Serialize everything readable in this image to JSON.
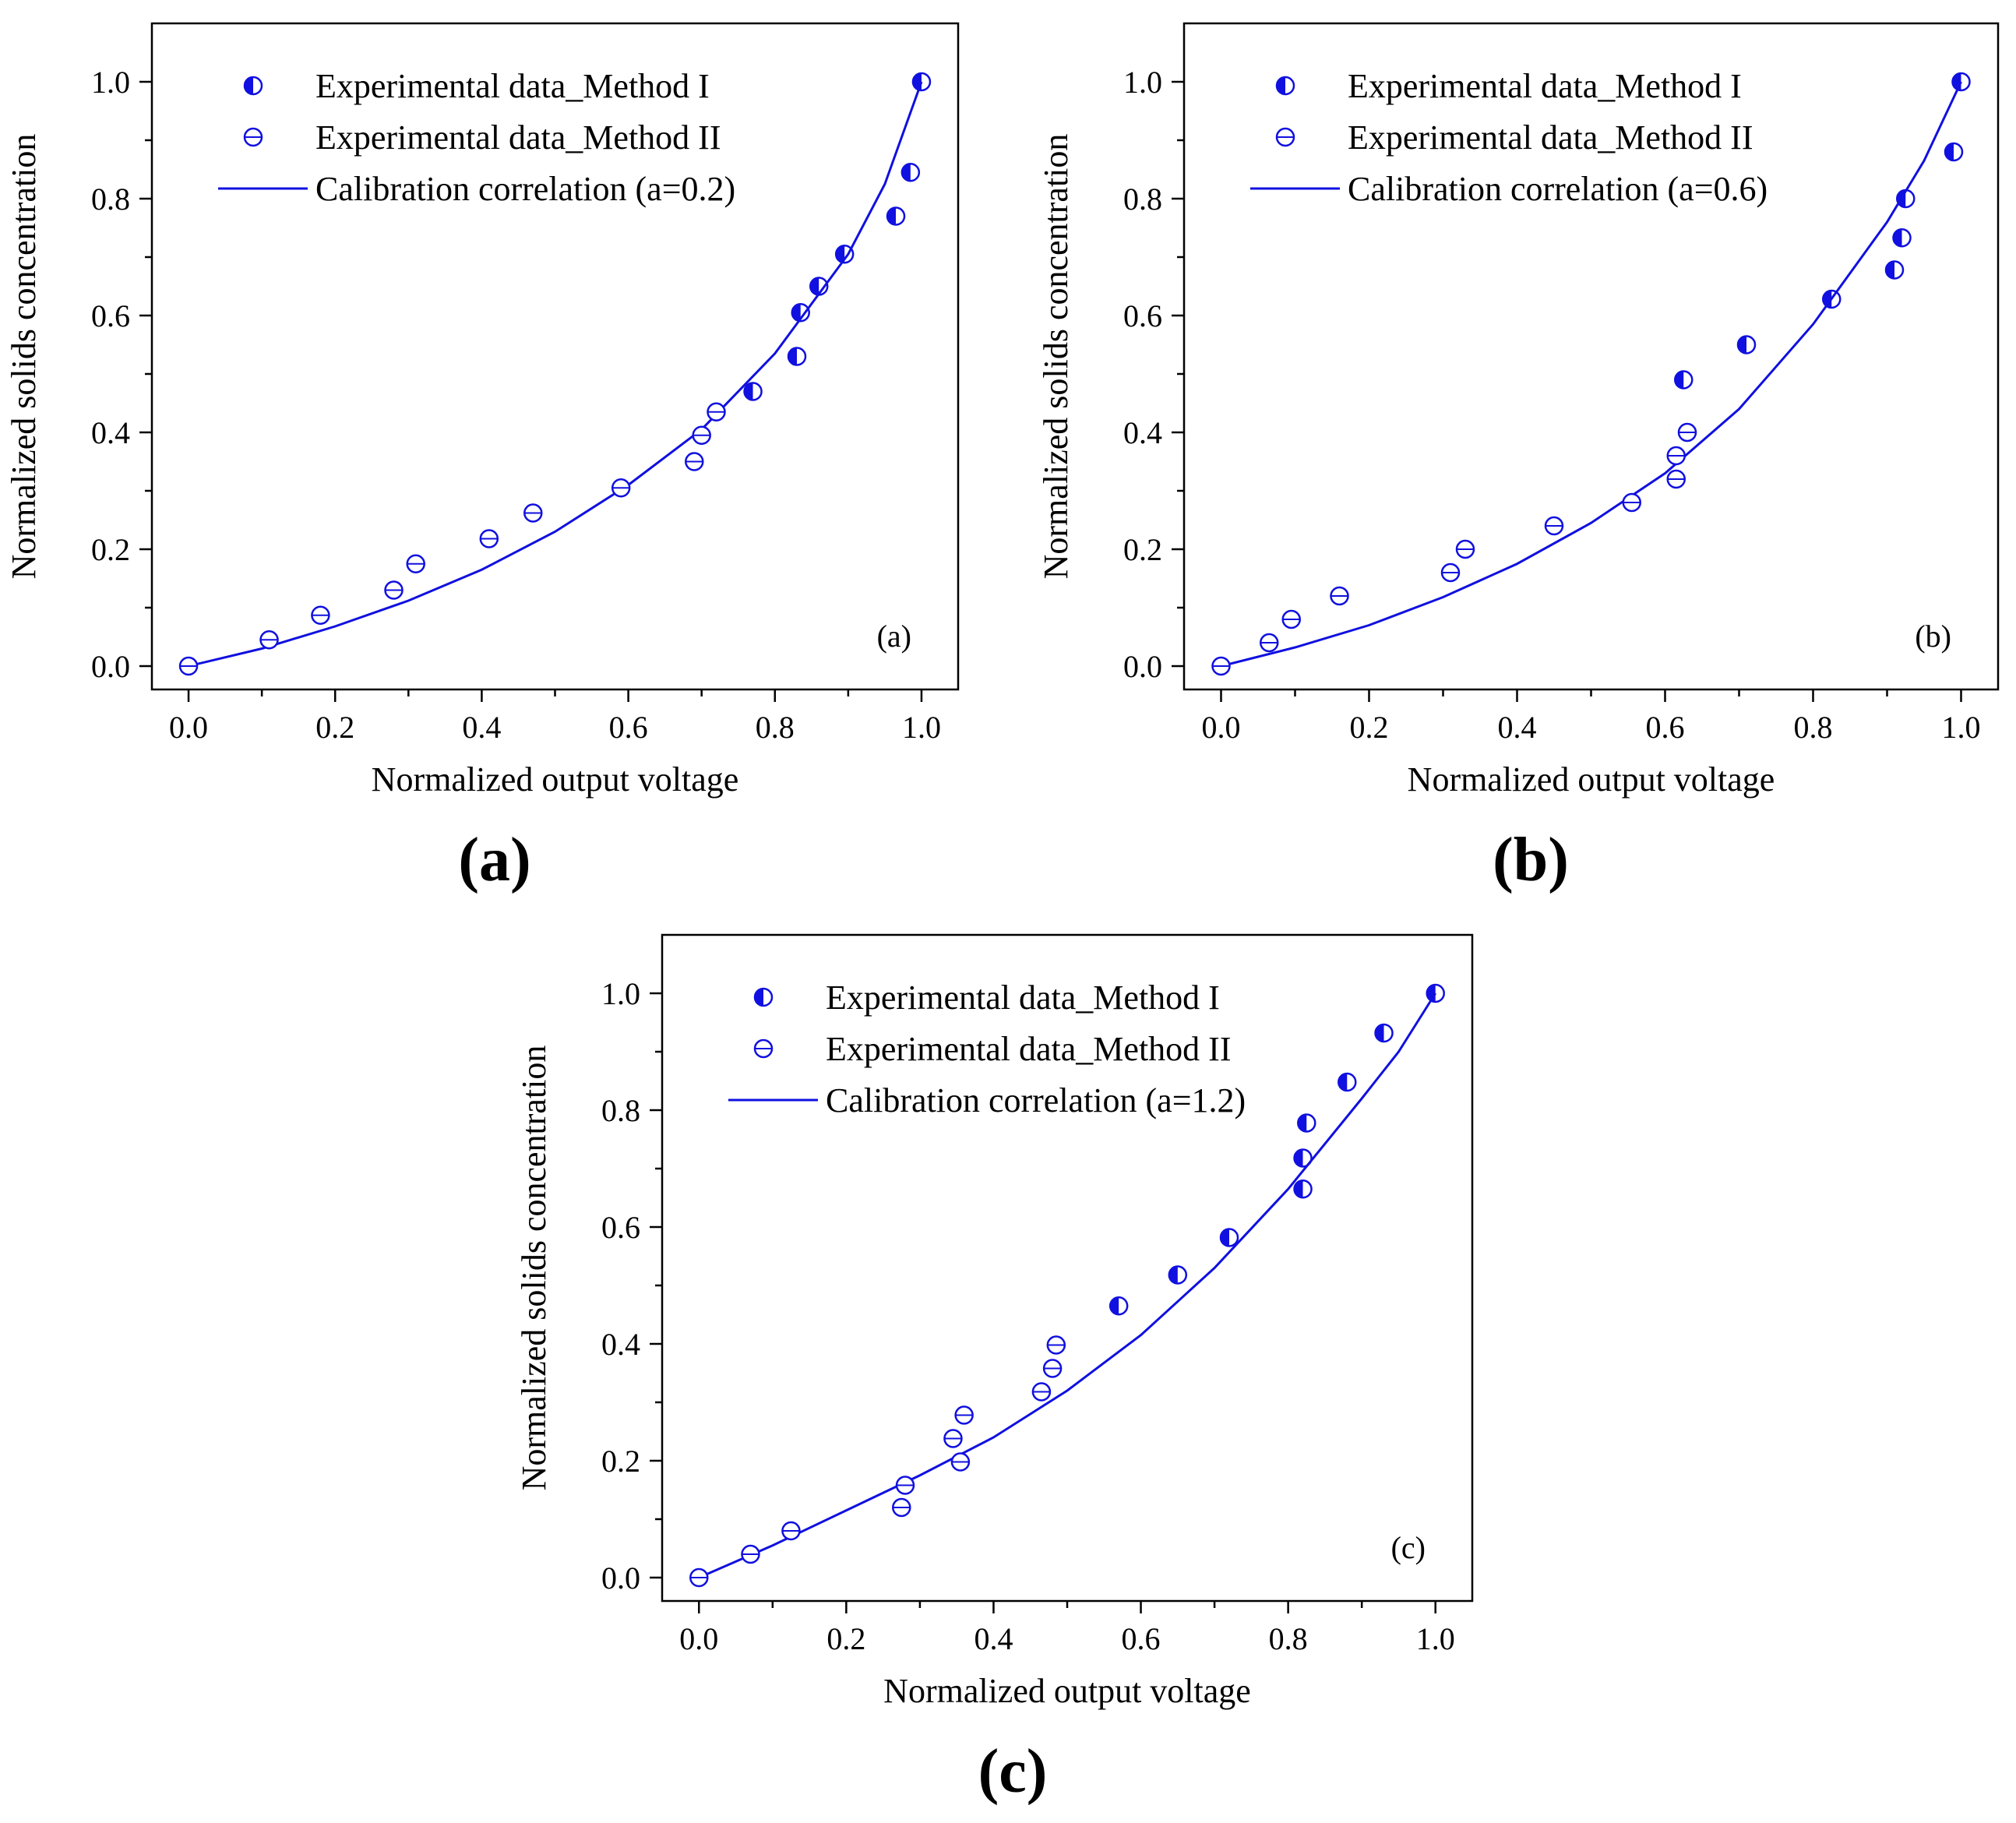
{
  "colors": {
    "series": "#1010e0",
    "axis": "#000000"
  },
  "chart_data": [
    {
      "type": "scatter",
      "panel_label": "(a)",
      "caption": "(a)",
      "xlabel": "Normalized output voltage",
      "ylabel": "Normalized solids concentration",
      "xlim": [
        -0.05,
        1.05
      ],
      "ylim": [
        -0.04,
        1.1
      ],
      "xticks": [
        "0.0",
        "0.2",
        "0.4",
        "0.6",
        "0.8",
        "1.0"
      ],
      "yticks": [
        "0.0",
        "0.2",
        "0.4",
        "0.6",
        "0.8",
        "1.0"
      ],
      "grid": false,
      "legend_position": "top-left",
      "series": [
        {
          "name": "Experimental data_Method I",
          "marker": "half-filled circle",
          "x": [
            0.77,
            0.83,
            0.835,
            0.86,
            0.895,
            0.965,
            0.985,
            1.0
          ],
          "y": [
            0.47,
            0.53,
            0.605,
            0.65,
            0.705,
            0.77,
            0.845,
            1.0
          ]
        },
        {
          "name": "Experimental data_Method II",
          "marker": "circle with bar",
          "x": [
            0.0,
            0.11,
            0.18,
            0.28,
            0.31,
            0.41,
            0.47,
            0.59,
            0.69,
            0.7,
            0.72
          ],
          "y": [
            0.0,
            0.045,
            0.087,
            0.13,
            0.175,
            0.218,
            0.262,
            0.305,
            0.35,
            0.395,
            0.435
          ]
        },
        {
          "name": "Calibration correlation (a=0.2)",
          "marker": "line",
          "x": [
            0.0,
            0.1,
            0.2,
            0.3,
            0.4,
            0.5,
            0.6,
            0.7,
            0.8,
            0.9,
            0.95,
            1.0
          ],
          "y": [
            0.0,
            0.03,
            0.068,
            0.112,
            0.165,
            0.23,
            0.31,
            0.405,
            0.535,
            0.705,
            0.825,
            1.0
          ]
        }
      ]
    },
    {
      "type": "scatter",
      "panel_label": "(b)",
      "caption": "(b)",
      "xlabel": "Normalized output voltage",
      "ylabel": "Normalized solids concentration",
      "xlim": [
        -0.05,
        1.05
      ],
      "ylim": [
        -0.04,
        1.1
      ],
      "xticks": [
        "0.0",
        "0.2",
        "0.4",
        "0.6",
        "0.8",
        "1.0"
      ],
      "yticks": [
        "0.0",
        "0.2",
        "0.4",
        "0.6",
        "0.8",
        "1.0"
      ],
      "grid": false,
      "legend_position": "top-left",
      "series": [
        {
          "name": "Experimental data_Method I",
          "marker": "half-filled circle",
          "x": [
            0.625,
            0.71,
            0.825,
            0.91,
            0.92,
            0.925,
            0.99,
            1.0
          ],
          "y": [
            0.49,
            0.55,
            0.628,
            0.678,
            0.733,
            0.8,
            0.88,
            1.0
          ]
        },
        {
          "name": "Experimental data_Method II",
          "marker": "circle with bar",
          "x": [
            0.0,
            0.065,
            0.095,
            0.16,
            0.31,
            0.33,
            0.45,
            0.555,
            0.615,
            0.615,
            0.63
          ],
          "y": [
            0.0,
            0.04,
            0.08,
            0.12,
            0.16,
            0.2,
            0.24,
            0.28,
            0.32,
            0.36,
            0.4
          ]
        },
        {
          "name": "Calibration correlation (a=0.6)",
          "marker": "line",
          "x": [
            0.0,
            0.1,
            0.2,
            0.3,
            0.4,
            0.5,
            0.6,
            0.7,
            0.8,
            0.9,
            0.95,
            1.0
          ],
          "y": [
            0.0,
            0.032,
            0.07,
            0.118,
            0.175,
            0.245,
            0.33,
            0.44,
            0.585,
            0.76,
            0.865,
            1.0
          ]
        }
      ]
    },
    {
      "type": "scatter",
      "panel_label": "(c)",
      "caption": "(c)",
      "xlabel": "Normalized output voltage",
      "ylabel": "Normalized solids concentration",
      "xlim": [
        -0.05,
        1.05
      ],
      "ylim": [
        -0.04,
        1.1
      ],
      "xticks": [
        "0.0",
        "0.2",
        "0.4",
        "0.6",
        "0.8",
        "1.0"
      ],
      "yticks": [
        "0.0",
        "0.2",
        "0.4",
        "0.6",
        "0.8",
        "1.0"
      ],
      "grid": false,
      "legend_position": "top-left",
      "series": [
        {
          "name": "Experimental data_Method I",
          "marker": "half-filled circle",
          "x": [
            0.57,
            0.65,
            0.72,
            0.82,
            0.82,
            0.825,
            0.88,
            0.93,
            1.0
          ],
          "y": [
            0.465,
            0.518,
            0.582,
            0.665,
            0.718,
            0.778,
            0.848,
            0.932,
            1.0
          ]
        },
        {
          "name": "Experimental data_Method II",
          "marker": "circle with bar",
          "x": [
            0.0,
            0.07,
            0.125,
            0.275,
            0.28,
            0.345,
            0.355,
            0.36,
            0.465,
            0.48,
            0.485
          ],
          "y": [
            0.0,
            0.04,
            0.08,
            0.12,
            0.158,
            0.238,
            0.198,
            0.278,
            0.318,
            0.358,
            0.398
          ]
        },
        {
          "name": "Calibration correlation (a=1.2)",
          "marker": "line",
          "x": [
            0.0,
            0.1,
            0.2,
            0.3,
            0.4,
            0.5,
            0.6,
            0.7,
            0.8,
            0.9,
            0.95,
            1.0
          ],
          "y": [
            0.0,
            0.055,
            0.115,
            0.175,
            0.24,
            0.32,
            0.415,
            0.53,
            0.665,
            0.82,
            0.9,
            1.0
          ]
        }
      ]
    }
  ]
}
